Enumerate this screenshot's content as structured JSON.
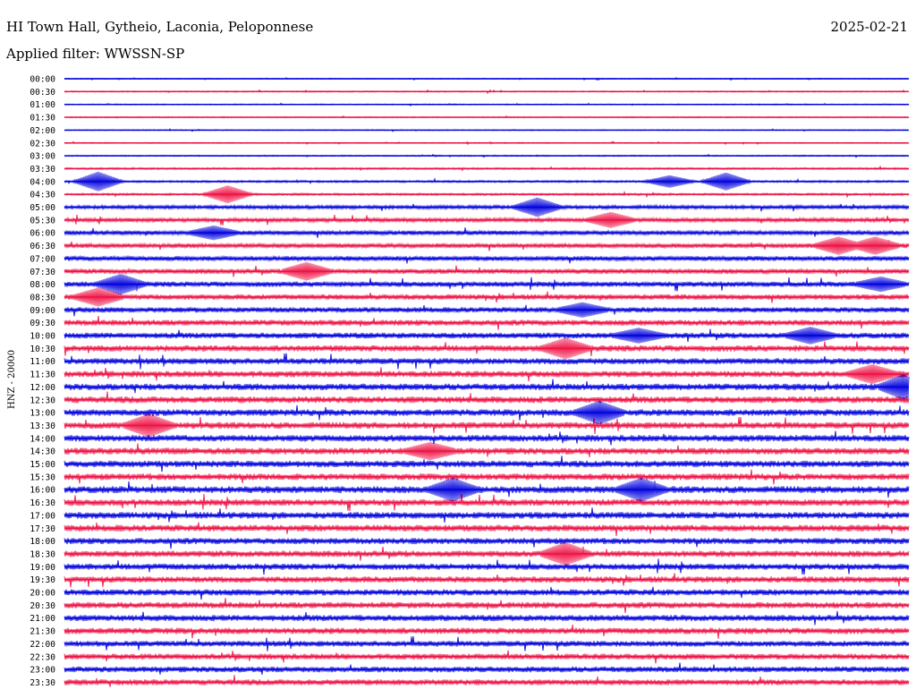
{
  "header": {
    "station": "HI Town Hall, Gytheio, Laconia, Peloponnese",
    "date": "2025-02-21",
    "filter": "Applied filter: WWSSN-SP"
  },
  "chart_data": {
    "type": "line",
    "title": "HI Town Hall, Gytheio, Laconia, Peloponnese",
    "ylabel": "HNZ - 20000",
    "xlabel": "",
    "rows": [
      "00:00",
      "00:30",
      "01:00",
      "01:30",
      "02:00",
      "02:30",
      "03:00",
      "03:30",
      "04:00",
      "04:30",
      "05:00",
      "05:30",
      "06:00",
      "06:30",
      "07:00",
      "07:30",
      "08:00",
      "08:30",
      "09:00",
      "09:30",
      "10:00",
      "10:30",
      "11:00",
      "11:30",
      "12:00",
      "12:30",
      "13:00",
      "13:30",
      "14:00",
      "14:30",
      "15:00",
      "15:30",
      "16:00",
      "16:30",
      "17:00",
      "17:30",
      "18:00",
      "18:30",
      "19:00",
      "19:30",
      "20:00",
      "20:30",
      "21:00",
      "21:30",
      "22:00",
      "22:30",
      "23:00",
      "23:30"
    ],
    "trace_colors": [
      "#0000dd",
      "#ee1144"
    ],
    "grid": false,
    "noise_level": [
      0.5,
      0.6,
      0.5,
      0.6,
      0.5,
      0.5,
      0.6,
      0.9,
      1.0,
      1.0,
      1.8,
      2.0,
      2.2,
      2.2,
      2.4,
      2.4,
      2.6,
      2.6,
      2.6,
      2.8,
      2.8,
      3.0,
      3.0,
      3.0,
      3.2,
      3.2,
      3.2,
      3.2,
      3.2,
      3.2,
      3.2,
      3.2,
      3.4,
      3.2,
      3.2,
      3.2,
      3.0,
      3.0,
      3.0,
      3.0,
      3.0,
      3.0,
      3.0,
      3.0,
      2.8,
      2.8,
      2.8,
      2.8
    ],
    "events": [
      {
        "row": "04:00",
        "minute": 1.2,
        "amplitude": 10
      },
      {
        "row": "04:00",
        "minute": 21.5,
        "amplitude": 6
      },
      {
        "row": "04:00",
        "minute": 23.5,
        "amplitude": 9
      },
      {
        "row": "04:30",
        "minute": 5.8,
        "amplitude": 9
      },
      {
        "row": "05:00",
        "minute": 16.8,
        "amplitude": 9
      },
      {
        "row": "05:30",
        "minute": 19.4,
        "amplitude": 7
      },
      {
        "row": "06:00",
        "minute": 5.3,
        "amplitude": 6
      },
      {
        "row": "06:30",
        "minute": 27.5,
        "amplitude": 8
      },
      {
        "row": "06:30",
        "minute": 28.8,
        "amplitude": 8
      },
      {
        "row": "07:30",
        "minute": 8.6,
        "amplitude": 8
      },
      {
        "row": "08:00",
        "minute": 2.0,
        "amplitude": 9
      },
      {
        "row": "08:00",
        "minute": 29.0,
        "amplitude": 6
      },
      {
        "row": "08:30",
        "minute": 1.2,
        "amplitude": 8
      },
      {
        "row": "09:00",
        "minute": 18.4,
        "amplitude": 6
      },
      {
        "row": "10:00",
        "minute": 20.4,
        "amplitude": 6
      },
      {
        "row": "10:00",
        "minute": 26.5,
        "amplitude": 7
      },
      {
        "row": "10:30",
        "minute": 17.8,
        "amplitude": 9
      },
      {
        "row": "11:30",
        "minute": 28.7,
        "amplitude": 8
      },
      {
        "row": "12:00",
        "minute": 29.8,
        "amplitude": 11
      },
      {
        "row": "13:00",
        "minute": 19.0,
        "amplitude": 10
      },
      {
        "row": "13:30",
        "minute": 3.0,
        "amplitude": 10
      },
      {
        "row": "14:30",
        "minute": 13.0,
        "amplitude": 7
      },
      {
        "row": "16:00",
        "minute": 13.8,
        "amplitude": 10
      },
      {
        "row": "16:00",
        "minute": 20.5,
        "amplitude": 10
      },
      {
        "row": "18:30",
        "minute": 17.8,
        "amplitude": 10
      }
    ]
  }
}
